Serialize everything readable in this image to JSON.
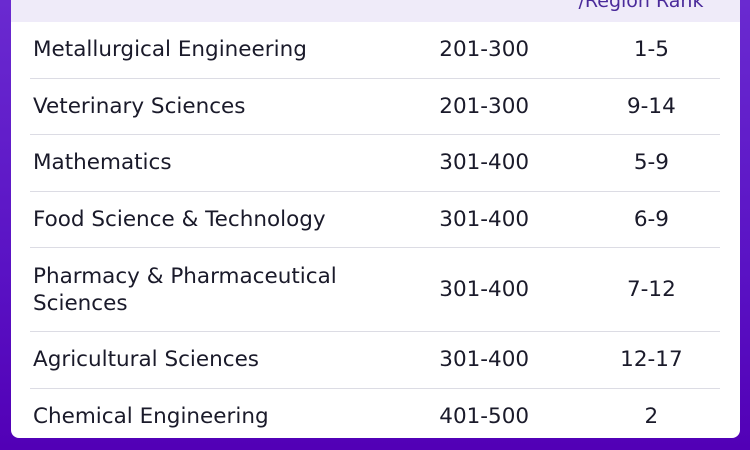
{
  "table": {
    "header_region_rank": "/Region Rank",
    "rows": [
      {
        "subject": "Metallurgical Engineering",
        "world_rank": "201-300",
        "region_rank": "1-5"
      },
      {
        "subject": "Veterinary Sciences",
        "world_rank": "201-300",
        "region_rank": "9-14"
      },
      {
        "subject": "Mathematics",
        "world_rank": "301-400",
        "region_rank": "5-9"
      },
      {
        "subject": "Food Science & Technology",
        "world_rank": "301-400",
        "region_rank": "6-9"
      },
      {
        "subject": "Pharmacy & Pharmaceutical Sciences",
        "world_rank": "301-400",
        "region_rank": "7-12"
      },
      {
        "subject": "Agricultural Sciences",
        "world_rank": "301-400",
        "region_rank": "12-17"
      },
      {
        "subject": "Chemical Engineering",
        "world_rank": "401-500",
        "region_rank": "2"
      }
    ]
  },
  "colors": {
    "background": "#5a12c4",
    "header_bg": "#efebf9"
  }
}
